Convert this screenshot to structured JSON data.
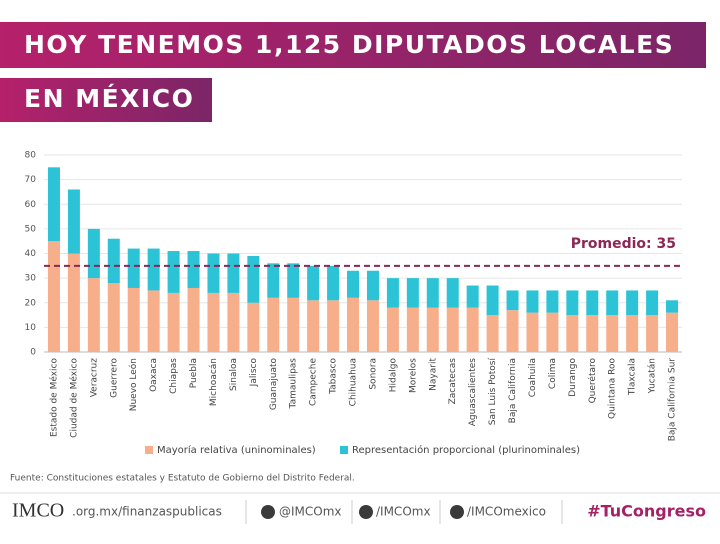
{
  "header": {
    "line1": "HOY TENEMOS 1,125 DIPUTADOS LOCALES",
    "line2": "EN MÉXICO"
  },
  "chart_data": {
    "type": "stacked_bar",
    "categories": [
      "Estado de México",
      "Ciudad de México",
      "Veracruz",
      "Guerrero",
      "Nuevo León",
      "Oaxaca",
      "Chiapas",
      "Puebla",
      "Michoacán",
      "Sinaloa",
      "Jalisco",
      "Guanajuato",
      "Tamaulipas",
      "Campeche",
      "Tabasco",
      "Chihuahua",
      "Sonora",
      "Hidalgo",
      "Morelos",
      "Nayarit",
      "Zacatecas",
      "Aguascalientes",
      "San Luis Potosí",
      "Baja California",
      "Coahuila",
      "Colima",
      "Durango",
      "Querétaro",
      "Quintana Roo",
      "Tlaxcala",
      "Yucatán",
      "Baja California Sur"
    ],
    "series": [
      {
        "name": "Mayoría relativa (uninominales)",
        "color": "#f7ae8b",
        "values": [
          45,
          40,
          30,
          28,
          26,
          25,
          24,
          26,
          24,
          24,
          20,
          22,
          22,
          21,
          21,
          22,
          21,
          18,
          18,
          18,
          18,
          18,
          15,
          17,
          16,
          16,
          15,
          15,
          15,
          15,
          15,
          16
        ]
      },
      {
        "name": "Representación proporcional (plurinominales)",
        "color": "#2bc3d5",
        "values": [
          30,
          26,
          20,
          18,
          16,
          17,
          17,
          15,
          16,
          16,
          19,
          14,
          14,
          14,
          14,
          11,
          12,
          12,
          12,
          12,
          12,
          9,
          12,
          8,
          9,
          9,
          10,
          10,
          10,
          10,
          10,
          5
        ]
      }
    ],
    "ylim": [
      0,
      80
    ],
    "yticks": [
      0,
      10,
      20,
      30,
      40,
      50,
      60,
      70,
      80
    ],
    "grid": true,
    "average": {
      "value": 35,
      "label": "Promedio: 35",
      "color": "#8c2757"
    },
    "source": "Fuente: Constituciones estatales y Estatuto de Gobierno del Distrito Federal."
  },
  "footer": {
    "logo": "IMCO",
    "site": ".org.mx/finanzaspublicas",
    "twitter": "@IMCOmx",
    "facebook": "/IMCOmx",
    "youtube": "/IMCOmexico",
    "hashtag": "#TuCongreso"
  }
}
